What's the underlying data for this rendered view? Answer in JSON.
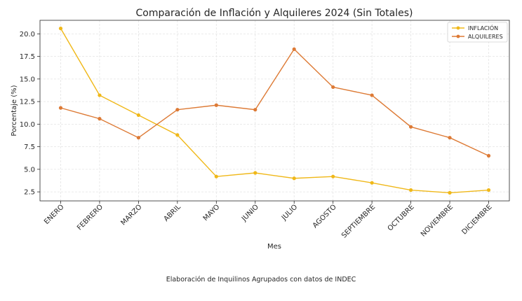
{
  "chart_data": {
    "type": "line",
    "title": "Comparación de Inflación y Alquileres 2024 (Sin Totales)",
    "xlabel": "Mes",
    "ylabel": "Porcentaje (%)",
    "categories": [
      "ENERO",
      "FEBRERO",
      "MARZO",
      "ABRIL",
      "MAYO",
      "JUNIO",
      "JULIO",
      "AGOSTO",
      "SEPTIEMBRE",
      "OCTUBRE",
      "NOVIEMBRE",
      "DICIEMBRE"
    ],
    "series": [
      {
        "name": "INFLACIÓN",
        "color": "#f0b819",
        "values": [
          20.6,
          13.2,
          11.0,
          8.8,
          4.2,
          4.6,
          4.0,
          4.2,
          3.5,
          2.7,
          2.4,
          2.7
        ]
      },
      {
        "name": "ALQUILERES",
        "color": "#dd7a35",
        "values": [
          11.8,
          10.6,
          8.5,
          11.6,
          12.1,
          11.6,
          18.3,
          14.1,
          13.2,
          9.7,
          8.5,
          6.5
        ]
      }
    ],
    "yticks": [
      "2.5",
      "5.0",
      "7.5",
      "10.0",
      "12.5",
      "15.0",
      "17.5",
      "20.0"
    ],
    "ylim": [
      1.5,
      21.5
    ],
    "grid": true,
    "legend_position": "top-right"
  },
  "caption": "Elaboración de Inquilinos Agrupados con datos de INDEC"
}
